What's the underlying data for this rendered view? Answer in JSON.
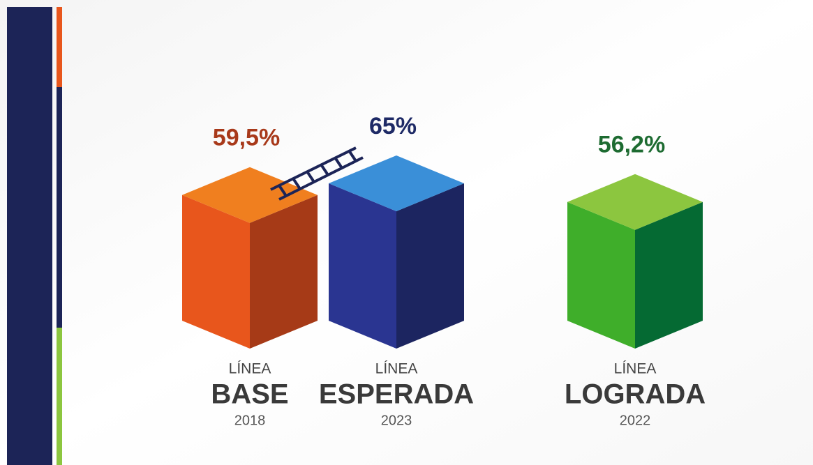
{
  "chart_data": {
    "type": "bar3d",
    "categories": [
      "BASE",
      "ESPERADA",
      "LOGRADA"
    ],
    "category_kickers": [
      "LÍNEA",
      "LÍNEA",
      "LÍNEA"
    ],
    "years": [
      "2018",
      "2023",
      "2022"
    ],
    "values": [
      59.5,
      65,
      56.2
    ],
    "value_labels": [
      "59,5%",
      "65%",
      "56,2%"
    ],
    "colors": [
      "#e8561c",
      "#2a3591",
      "#3fae2a"
    ],
    "side_colors": [
      "#a63a17",
      "#1c2560",
      "#056a33"
    ],
    "top_colors": [
      "#f07f1f",
      "#3a8fd8",
      "#8cc63f"
    ],
    "label_colors": [
      "#a8391a",
      "#1e2a66",
      "#1d6b31"
    ]
  }
}
